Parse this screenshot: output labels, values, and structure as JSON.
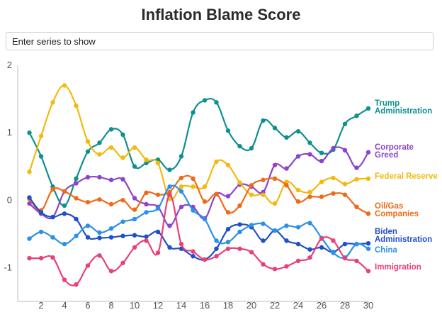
{
  "title": "Inflation Blame Score",
  "search": {
    "placeholder": "Enter series to show",
    "value": ""
  },
  "chart_data": {
    "type": "line",
    "title": "Inflation Blame Score",
    "xlabel": "",
    "ylabel": "",
    "xlim": [
      0,
      30
    ],
    "ylim": [
      -1.5,
      2
    ],
    "x_ticks": [
      2,
      4,
      6,
      8,
      10,
      12,
      14,
      16,
      18,
      20,
      22,
      24,
      26,
      28,
      30
    ],
    "y_ticks": [
      -1,
      0,
      1,
      2
    ],
    "grid": false,
    "legend": "inline labels at right end of lines",
    "x": [
      1,
      2,
      3,
      4,
      5,
      6,
      7,
      8,
      9,
      10,
      11,
      12,
      13,
      14,
      15,
      16,
      17,
      18,
      19,
      20,
      21,
      22,
      23,
      24,
      25,
      26,
      27,
      28,
      29,
      30
    ],
    "series": [
      {
        "name": "Trump Administration",
        "label_lines": [
          "Trump",
          "Administration"
        ],
        "color": "#0f8f8f",
        "values": [
          1.0,
          0.65,
          0.2,
          -0.08,
          0.32,
          0.72,
          0.85,
          1.05,
          0.97,
          0.5,
          0.55,
          0.6,
          0.45,
          0.65,
          1.3,
          1.48,
          1.45,
          1.03,
          0.8,
          0.77,
          1.18,
          1.07,
          0.93,
          1.02,
          0.85,
          0.7,
          0.75,
          1.13,
          1.25,
          1.36
        ]
      },
      {
        "name": "Corporate Greed",
        "label_lines": [
          "Corporate",
          "Greed"
        ],
        "color": "#8e44c9",
        "values": [
          -0.05,
          -0.2,
          -0.25,
          0.13,
          0.25,
          0.34,
          0.34,
          0.3,
          0.31,
          0.03,
          -0.06,
          -0.1,
          -0.38,
          -0.1,
          -0.1,
          -0.27,
          0.09,
          0.06,
          0.23,
          0.2,
          0.12,
          0.52,
          0.47,
          0.65,
          0.68,
          0.58,
          0.77,
          0.74,
          0.48,
          0.71
        ]
      },
      {
        "name": "Federal Reserve",
        "label_lines": [
          "Federal Reserve"
        ],
        "color": "#f2b90f",
        "values": [
          0.42,
          0.95,
          1.45,
          1.7,
          1.4,
          0.87,
          0.68,
          0.78,
          0.63,
          0.78,
          0.6,
          0.55,
          0.02,
          0.2,
          0.2,
          0.2,
          0.57,
          0.52,
          0.26,
          0.08,
          0.08,
          -0.05,
          0.27,
          0.15,
          0.12,
          0.27,
          0.33,
          0.24,
          0.31,
          0.32
        ]
      },
      {
        "name": "Oil/Gas Companies",
        "label_lines": [
          "Oil/Gas",
          "Companies"
        ],
        "color": "#ef6a16",
        "values": [
          0.02,
          -0.15,
          0.16,
          0.13,
          0.03,
          -0.03,
          0.01,
          -0.06,
          0.0,
          -0.14,
          0.11,
          0.08,
          0.12,
          0.33,
          0.32,
          -0.02,
          0.09,
          -0.18,
          -0.08,
          0.22,
          0.3,
          0.32,
          0.22,
          -0.02,
          0.05,
          0.05,
          0.1,
          0.08,
          -0.1,
          -0.2
        ]
      },
      {
        "name": "Biden Administration",
        "label_lines": [
          "Biden",
          "Administration"
        ],
        "color": "#1f4fc9",
        "values": [
          0.04,
          -0.18,
          -0.25,
          -0.2,
          -0.28,
          -0.55,
          -0.56,
          -0.55,
          -0.53,
          -0.52,
          -0.54,
          -0.47,
          -0.7,
          -0.72,
          -0.83,
          -0.88,
          -0.72,
          -0.43,
          -0.36,
          -0.4,
          -0.6,
          -0.45,
          -0.6,
          -0.65,
          -0.73,
          -0.7,
          -0.77,
          -0.65,
          -0.65,
          -0.64
        ]
      },
      {
        "name": "China",
        "label_lines": [
          "China"
        ],
        "color": "#2b91e6",
        "values": [
          -0.57,
          -0.47,
          -0.55,
          -0.65,
          -0.53,
          -0.38,
          -0.48,
          -0.42,
          -0.32,
          -0.28,
          -0.18,
          -0.12,
          0.2,
          0.13,
          -0.15,
          -0.28,
          -0.6,
          -0.62,
          -0.47,
          -0.37,
          -0.35,
          -0.45,
          -0.38,
          -0.4,
          -0.34,
          -0.56,
          -0.78,
          -0.85,
          -0.65,
          -0.72
        ]
      },
      {
        "name": "Immigration",
        "label_lines": [
          "Immigration"
        ],
        "color": "#e8407a",
        "values": [
          -0.86,
          -0.86,
          -0.85,
          -1.18,
          -1.25,
          -0.97,
          -0.82,
          -1.05,
          -0.93,
          -0.7,
          -0.6,
          -0.78,
          0.08,
          -0.65,
          -0.76,
          -0.88,
          -0.83,
          -0.72,
          -0.72,
          -0.77,
          -0.95,
          -1.02,
          -0.98,
          -0.9,
          -0.85,
          -0.57,
          -0.6,
          -0.86,
          -0.9,
          -1.05
        ]
      }
    ]
  }
}
